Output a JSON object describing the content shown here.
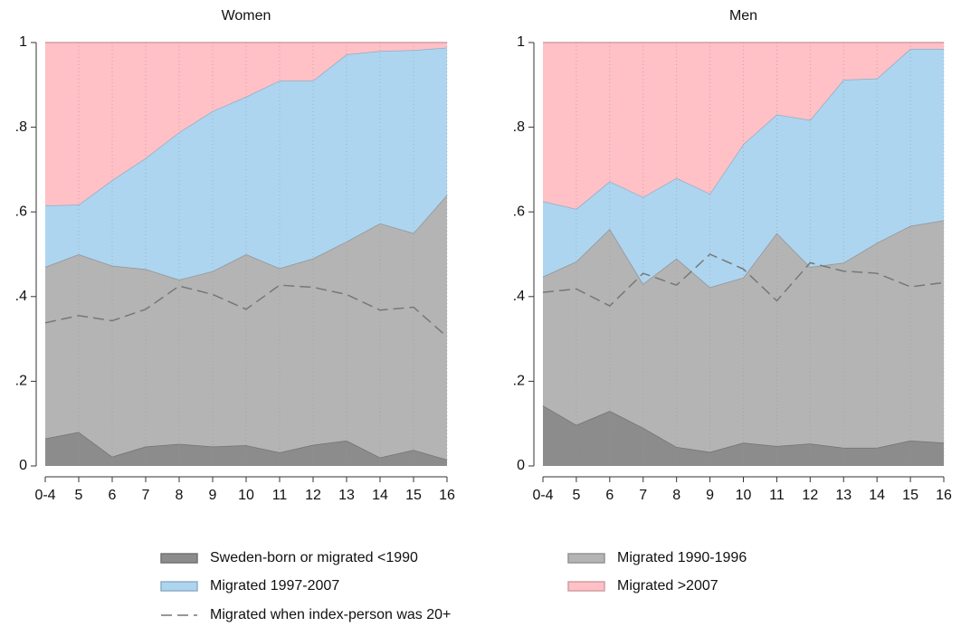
{
  "chart_data": [
    {
      "type": "area",
      "title": "Women",
      "categories": [
        "0-4",
        "5",
        "6",
        "7",
        "8",
        "9",
        "10",
        "11",
        "12",
        "13",
        "14",
        "15",
        "16"
      ],
      "ylim": [
        0,
        1
      ],
      "yticks": [
        0,
        {
          "value": 0.2,
          "label": ".2"
        },
        {
          "value": 0.4,
          "label": ".4"
        },
        {
          "value": 0.6,
          "label": ".6"
        },
        {
          "value": 0.8,
          "label": ".8"
        },
        1
      ],
      "grid": "x-dotted",
      "series": [
        {
          "name": "Sweden-born or migrated <1990",
          "color": "#8c8c8c",
          "stack": true,
          "values": [
            0.065,
            0.08,
            0.022,
            0.046,
            0.052,
            0.046,
            0.049,
            0.032,
            0.05,
            0.06,
            0.02,
            0.038,
            0.015
          ]
        },
        {
          "name": "Migrated 1990-1996",
          "color": "#b4b4b4",
          "stack": true,
          "values": [
            0.405,
            0.42,
            0.451,
            0.419,
            0.388,
            0.414,
            0.451,
            0.435,
            0.44,
            0.47,
            0.553,
            0.512,
            0.625
          ]
        },
        {
          "name": "Migrated 1997-2007",
          "color": "#add5f0",
          "stack": true,
          "values": [
            0.145,
            0.117,
            0.202,
            0.262,
            0.348,
            0.378,
            0.372,
            0.443,
            0.42,
            0.442,
            0.407,
            0.432,
            0.348
          ]
        },
        {
          "name": "Migrated >2007",
          "color": "#ffc0c6",
          "stack": true,
          "values": [
            0.385,
            0.383,
            0.325,
            0.273,
            0.212,
            0.162,
            0.128,
            0.09,
            0.09,
            0.028,
            0.02,
            0.018,
            0.012
          ]
        },
        {
          "name": "Migrated when index-person was 20+",
          "color": "#777777",
          "stack": false,
          "dashed": true,
          "values": [
            0.338,
            0.355,
            0.343,
            0.37,
            0.425,
            0.405,
            0.37,
            0.427,
            0.422,
            0.405,
            0.368,
            0.375,
            0.305
          ]
        }
      ]
    },
    {
      "type": "area",
      "title": "Men",
      "categories": [
        "0-4",
        "5",
        "6",
        "7",
        "8",
        "9",
        "10",
        "11",
        "12",
        "13",
        "14",
        "15",
        "16"
      ],
      "ylim": [
        0,
        1
      ],
      "yticks": [
        0,
        {
          "value": 0.2,
          "label": ".2"
        },
        {
          "value": 0.4,
          "label": ".4"
        },
        {
          "value": 0.6,
          "label": ".6"
        },
        {
          "value": 0.8,
          "label": ".8"
        },
        1
      ],
      "grid": "x-dotted",
      "series": [
        {
          "color": "#8c8c8c",
          "stack": true,
          "values": [
            0.143,
            0.097,
            0.13,
            0.09,
            0.045,
            0.033,
            0.055,
            0.047,
            0.053,
            0.043,
            0.043,
            0.06,
            0.055
          ]
        },
        {
          "color": "#b4b4b4",
          "stack": true,
          "values": [
            0.304,
            0.386,
            0.43,
            0.34,
            0.445,
            0.389,
            0.39,
            0.503,
            0.417,
            0.437,
            0.484,
            0.507,
            0.525
          ]
        },
        {
          "color": "#add5f0",
          "stack": true,
          "values": [
            0.178,
            0.124,
            0.112,
            0.205,
            0.19,
            0.221,
            0.315,
            0.28,
            0.347,
            0.432,
            0.388,
            0.418,
            0.405
          ]
        },
        {
          "color": "#ffc0c6",
          "stack": true,
          "values": [
            0.375,
            0.393,
            0.328,
            0.365,
            0.32,
            0.357,
            0.24,
            0.17,
            0.183,
            0.088,
            0.085,
            0.015,
            0.015
          ]
        },
        {
          "color": "#777777",
          "stack": false,
          "dashed": true,
          "values": [
            0.41,
            0.418,
            0.378,
            0.455,
            0.427,
            0.5,
            0.465,
            0.39,
            0.48,
            0.46,
            0.455,
            0.423,
            0.433
          ]
        }
      ]
    }
  ]
}
